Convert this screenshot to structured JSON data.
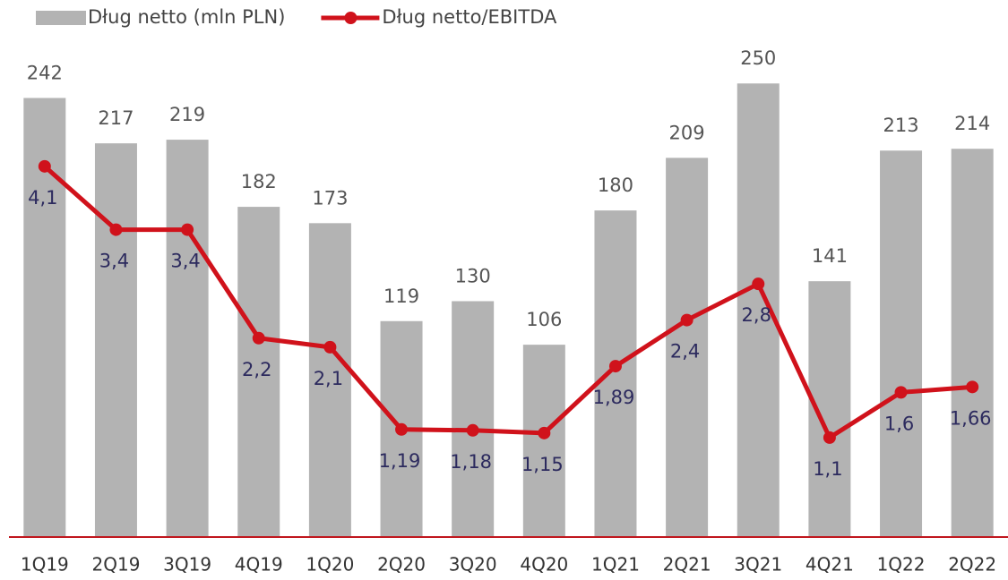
{
  "chart_data": {
    "type": "bar",
    "categories": [
      "1Q19",
      "2Q19",
      "3Q19",
      "4Q19",
      "1Q20",
      "2Q20",
      "3Q20",
      "4Q20",
      "1Q21",
      "2Q21",
      "3Q21",
      "4Q21",
      "1Q22",
      "2Q22"
    ],
    "series": [
      {
        "name": "Dług netto (mln PLN)",
        "type": "bar",
        "color": "#b3b3b3",
        "values": [
          242,
          217,
          219,
          182,
          173,
          119,
          130,
          106,
          180,
          209,
          250,
          141,
          213,
          214
        ]
      },
      {
        "name": "Dług netto/EBITDA",
        "type": "line",
        "axis": "y2",
        "color": "#d0121b",
        "values": [
          4.1,
          3.4,
          3.4,
          2.2,
          2.1,
          1.19,
          1.18,
          1.15,
          1.89,
          2.4,
          2.8,
          1.1,
          1.6,
          1.66
        ],
        "value_labels": [
          "4,1",
          "3,4",
          "3,4",
          "2,2",
          "2,1",
          "1,19",
          "1,18",
          "1,15",
          "1,89",
          "2,4",
          "2,8",
          "1,1",
          "1,6",
          "1,66"
        ]
      }
    ],
    "ylim": [
      0,
      296
    ],
    "y2lim": [
      0,
      5.94
    ],
    "legend": "top-left",
    "axis_color": "#c0161d"
  }
}
